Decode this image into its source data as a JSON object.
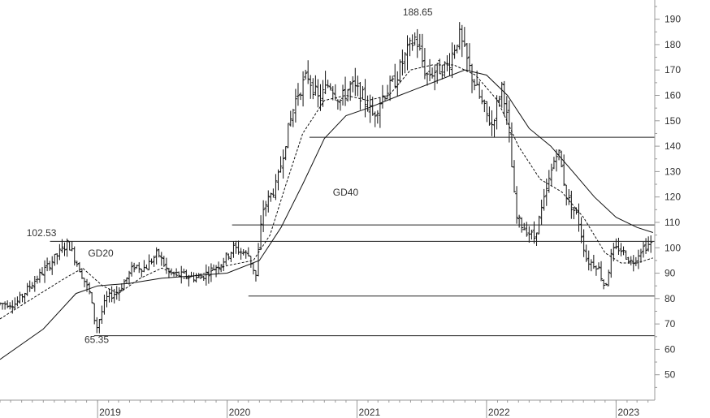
{
  "chart_data": {
    "type": "ohlc",
    "title": "",
    "xlabel": "",
    "ylabel": "",
    "x_range": [
      "2018-04-01",
      "2023-04-20"
    ],
    "ylim": [
      40,
      195
    ],
    "y_ticks": [
      50,
      60,
      70,
      80,
      90,
      100,
      110,
      120,
      130,
      140,
      150,
      160,
      170,
      180,
      190
    ],
    "x_ticks": [
      {
        "label": "2019",
        "date": "2019-01-01"
      },
      {
        "label": "2020",
        "date": "2020-01-01"
      },
      {
        "label": "2021",
        "date": "2021-01-01"
      },
      {
        "label": "2022",
        "date": "2022-01-01"
      },
      {
        "label": "2023",
        "date": "2023-01-01"
      }
    ],
    "grid": false,
    "price_keypoints": [
      [
        "2018-04-01",
        78
      ],
      [
        "2018-05-15",
        78
      ],
      [
        "2018-07-01",
        86
      ],
      [
        "2018-08-15",
        93
      ],
      [
        "2018-10-10",
        102
      ],
      [
        "2018-11-10",
        92
      ],
      [
        "2018-12-10",
        82
      ],
      [
        "2018-12-28",
        68
      ],
      [
        "2019-01-25",
        80
      ],
      [
        "2019-03-01",
        83
      ],
      [
        "2019-04-15",
        93
      ],
      [
        "2019-05-15",
        92
      ],
      [
        "2019-06-20",
        98
      ],
      [
        "2019-07-20",
        90
      ],
      [
        "2019-09-01",
        89
      ],
      [
        "2019-10-15",
        88
      ],
      [
        "2019-12-15",
        94
      ],
      [
        "2020-01-20",
        100
      ],
      [
        "2020-03-01",
        97
      ],
      [
        "2020-03-22",
        89
      ],
      [
        "2020-04-10",
        115
      ],
      [
        "2020-05-20",
        125
      ],
      [
        "2020-06-15",
        143
      ],
      [
        "2020-07-15",
        160
      ],
      [
        "2020-08-15",
        168
      ],
      [
        "2020-09-15",
        158
      ],
      [
        "2020-10-15",
        165
      ],
      [
        "2020-11-15",
        158
      ],
      [
        "2020-12-15",
        164
      ],
      [
        "2021-01-15",
        160
      ],
      [
        "2021-02-15",
        152
      ],
      [
        "2021-03-15",
        160
      ],
      [
        "2021-04-15",
        165
      ],
      [
        "2021-05-15",
        175
      ],
      [
        "2021-06-15",
        183
      ],
      [
        "2021-07-15",
        168
      ],
      [
        "2021-08-15",
        170
      ],
      [
        "2021-09-15",
        172
      ],
      [
        "2021-10-15",
        184
      ],
      [
        "2021-11-15",
        170
      ],
      [
        "2021-12-15",
        158
      ],
      [
        "2022-01-15",
        148
      ],
      [
        "2022-02-15",
        165
      ],
      [
        "2022-03-05",
        145
      ],
      [
        "2022-03-25",
        112
      ],
      [
        "2022-04-15",
        108
      ],
      [
        "2022-05-15",
        104
      ],
      [
        "2022-06-15",
        120
      ],
      [
        "2022-07-20",
        140
      ],
      [
        "2022-08-15",
        120
      ],
      [
        "2022-09-15",
        112
      ],
      [
        "2022-10-10",
        95
      ],
      [
        "2022-11-10",
        93
      ],
      [
        "2022-12-01",
        84
      ],
      [
        "2022-12-20",
        98
      ],
      [
        "2023-01-10",
        100
      ],
      [
        "2023-02-15",
        94
      ],
      [
        "2023-03-15",
        100
      ],
      [
        "2023-04-15",
        102
      ]
    ],
    "series": [
      {
        "name": "GD20",
        "style": "dashed",
        "values": [
          [
            "2018-04-01",
            72
          ],
          [
            "2018-07-01",
            80
          ],
          [
            "2018-10-01",
            88
          ],
          [
            "2018-11-20",
            92
          ],
          [
            "2019-01-15",
            85
          ],
          [
            "2019-03-01",
            82
          ],
          [
            "2019-05-01",
            88
          ],
          [
            "2019-07-01",
            92
          ],
          [
            "2019-09-01",
            88
          ],
          [
            "2019-11-01",
            90
          ],
          [
            "2020-01-01",
            93
          ],
          [
            "2020-03-15",
            95
          ],
          [
            "2020-05-01",
            105
          ],
          [
            "2020-06-15",
            125
          ],
          [
            "2020-08-01",
            145
          ],
          [
            "2020-10-01",
            158
          ],
          [
            "2020-12-01",
            160
          ],
          [
            "2021-02-01",
            158
          ],
          [
            "2021-04-01",
            160
          ],
          [
            "2021-06-01",
            170
          ],
          [
            "2021-08-01",
            172
          ],
          [
            "2021-10-01",
            172
          ],
          [
            "2021-12-01",
            168
          ],
          [
            "2022-02-01",
            158
          ],
          [
            "2022-04-01",
            140
          ],
          [
            "2022-06-01",
            127
          ],
          [
            "2022-08-01",
            122
          ],
          [
            "2022-10-01",
            112
          ],
          [
            "2022-12-01",
            98
          ],
          [
            "2023-01-15",
            94
          ],
          [
            "2023-03-01",
            94
          ],
          [
            "2023-04-15",
            96
          ]
        ]
      },
      {
        "name": "GD40",
        "style": "solid",
        "values": [
          [
            "2018-04-01",
            56
          ],
          [
            "2018-08-01",
            68
          ],
          [
            "2018-11-01",
            82
          ],
          [
            "2019-01-01",
            85
          ],
          [
            "2019-04-01",
            86
          ],
          [
            "2019-07-01",
            88
          ],
          [
            "2019-10-01",
            89
          ],
          [
            "2020-01-01",
            90
          ],
          [
            "2020-04-01",
            95
          ],
          [
            "2020-06-01",
            108
          ],
          [
            "2020-08-01",
            125
          ],
          [
            "2020-10-01",
            143
          ],
          [
            "2020-12-01",
            152
          ],
          [
            "2021-02-01",
            155
          ],
          [
            "2021-05-01",
            160
          ],
          [
            "2021-08-01",
            165
          ],
          [
            "2021-11-01",
            170
          ],
          [
            "2022-01-01",
            168
          ],
          [
            "2022-03-01",
            160
          ],
          [
            "2022-05-01",
            147
          ],
          [
            "2022-07-01",
            140
          ],
          [
            "2022-09-01",
            130
          ],
          [
            "2022-11-01",
            120
          ],
          [
            "2023-01-01",
            112
          ],
          [
            "2023-03-01",
            108
          ],
          [
            "2023-04-15",
            106
          ]
        ]
      }
    ],
    "horizontal_levels": [
      {
        "y": 102.53,
        "from": "2018-08-20",
        "to": "2023-04-20"
      },
      {
        "y": 65.35,
        "from": "2018-12-22",
        "to": "2023-04-20"
      },
      {
        "y": 109,
        "from": "2020-01-15",
        "to": "2023-04-20"
      },
      {
        "y": 81,
        "from": "2020-03-01",
        "to": "2023-04-20"
      },
      {
        "y": 143.5,
        "from": "2020-08-20",
        "to": "2023-04-20"
      }
    ],
    "annotations": [
      {
        "text": "102.53",
        "x": "2018-06-15",
        "y": 104.5
      },
      {
        "text": "GD20",
        "x": "2018-12-05",
        "y": 96.5
      },
      {
        "text": "65.35",
        "x": "2018-11-25",
        "y": 62.5
      },
      {
        "text": "188.65",
        "x": "2021-05-10",
        "y": 191.5
      },
      {
        "text": "GD40",
        "x": "2020-10-25",
        "y": 120.5
      }
    ]
  }
}
